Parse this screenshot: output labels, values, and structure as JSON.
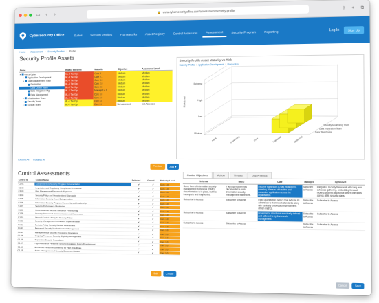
{
  "browser": {
    "url": "www.cybersecurityoffice.com/assessment/security-profile",
    "lock_icon": "lock-icon"
  },
  "app": {
    "brand": "Cybersecurity Office",
    "menu": [
      "Suites",
      "Security Profiles",
      "Frameworks",
      "Asset Registry",
      "Control Measures",
      "Assessment",
      "Security Program",
      "Reporting"
    ],
    "login": "Log In",
    "signup": "Sign Up",
    "brand_color": "#1a79c6"
  },
  "breadcrumb": [
    "Home",
    "Assessment",
    "Security Profiles",
    "Profile"
  ],
  "profile": {
    "title": "Security Profile Assets",
    "columns": [
      "Name",
      "Impact Baseline",
      "Maturity",
      "Objective",
      "Assurance Level"
    ],
    "rows": [
      {
        "name": "Office/Cyber",
        "impact": "ML-4 Tier/Opt",
        "maturity": "Core 3.1",
        "objective": "Medium",
        "assurance": "Medium",
        "c1": "red",
        "c2": "orange",
        "c3": "yellow",
        "c4": "yellow",
        "depth": 0,
        "sel": false
      },
      {
        "name": "Application Development",
        "impact": "ML-4 Tier/Opt",
        "maturity": "Core 2.1",
        "objective": "Medium",
        "assurance": "Medium",
        "c1": "red",
        "c2": "orange",
        "c3": "yellow",
        "c4": "yellow",
        "depth": 1,
        "sel": false
      },
      {
        "name": "Data Management Team",
        "impact": "ML-4 Tier/Opt",
        "maturity": "Core 3.0",
        "objective": "Medium",
        "assurance": "Medium",
        "c1": "red",
        "c2": "orange",
        "c3": "yellow",
        "c4": "yellow",
        "depth": 1,
        "sel": false
      },
      {
        "name": "Production",
        "impact": "ML-4 Tier/Opt",
        "maturity": "Core 2.0",
        "objective": "Medium",
        "assurance": "Medium",
        "c1": "red",
        "c2": "orange",
        "c3": "yellow",
        "c4": "yellow",
        "depth": 2,
        "sel": false
      },
      {
        "name": "Data Center Team",
        "impact": "ML-4 Tier/Opt",
        "maturity": "Core 2.5",
        "objective": "Medium",
        "assurance": "Medium",
        "c1": "red",
        "c2": "orange",
        "c3": "yellow",
        "c4": "yellow",
        "depth": 2,
        "sel": true
      },
      {
        "name": "Data Integration Mgr",
        "impact": "ML-4 Tier/Opt",
        "maturity": "Managed 4.0",
        "objective": "Medium",
        "assurance": "Medium",
        "c1": "red",
        "c2": "orange",
        "c3": "yellow",
        "c4": "yellow",
        "depth": 2,
        "sel": false
      },
      {
        "name": "Data Management",
        "impact": "ML-4 Tier/Opt",
        "maturity": "Core 3.0",
        "objective": "Medium",
        "assurance": "Medium",
        "c1": "red",
        "c2": "orange",
        "c3": "yellow",
        "c4": "yellow",
        "depth": 2,
        "sel": false
      },
      {
        "name": "Infrastructure Team",
        "impact": "ML-4 Tier/Opt",
        "maturity": "Core 2.0",
        "objective": "Medium",
        "assurance": "Medium",
        "c1": "red",
        "c2": "orange",
        "c3": "yellow",
        "c4": "yellow",
        "depth": 1,
        "sel": false
      },
      {
        "name": "Security Team",
        "impact": "ML-4 Tier/Opt",
        "maturity": "Core 3.0",
        "objective": "Medium",
        "assurance": "Medium",
        "c1": "yellow",
        "c2": "orange",
        "c3": "yellow",
        "c4": "yellow",
        "depth": 1,
        "sel": false
      },
      {
        "name": "Support Team",
        "impact": "ML-4 Tier/Opt",
        "maturity": "Core 2.0",
        "objective": "Not Assessed",
        "assurance": "Not Assessed",
        "c1": "yellow",
        "c2": "orange",
        "c3": "none",
        "c4": "none",
        "depth": 1,
        "sel": false
      }
    ],
    "links": [
      "Expand All",
      "Collapse All"
    ]
  },
  "chart_panel": {
    "title": "Security Profile Asset Maturity vs Risk",
    "crumb": [
      "Security Profile",
      "Application Development",
      "Production"
    ],
    "zlabel": "Risk Level",
    "y_ticks": [
      "Extreme",
      "High",
      "Low",
      "Minimal"
    ],
    "x_ticks": [
      "Initial",
      "Developing",
      "Core",
      "Managed",
      "Optimized"
    ],
    "depth_labels": [
      "Data Warehouse",
      "Data Integration Team",
      "Security Monitoring Team"
    ],
    "bar_color": "#f5f01e"
  },
  "chart_data": {
    "type": "bar",
    "title": "Security Profile Asset Maturity vs Risk",
    "categories": [
      "Initial",
      "Developing",
      "Core",
      "Managed",
      "Optimized"
    ],
    "series": [
      {
        "name": "Data Warehouse",
        "values": [
          0,
          0,
          0,
          2,
          0
        ]
      },
      {
        "name": "Data Integration Team",
        "values": [
          0,
          0,
          0,
          2,
          0
        ]
      },
      {
        "name": "Security Monitoring Team",
        "values": [
          0,
          0,
          0,
          2,
          0
        ]
      }
    ],
    "xlabel": "",
    "ylabel": "Risk Level"
  },
  "buttons": {
    "preview": "Preview",
    "add": "Add"
  },
  "ca": {
    "title": "Control Assessments",
    "columns": [
      "Control ID",
      "Control Name",
      "Selected",
      "Owned",
      "Maturity Level"
    ],
    "rows": [
      {
        "id": "C1.01",
        "name": "Comprehensive Security Program Documentation",
        "sel": "✔",
        "own": "✔",
        "ml": "Core 3.0",
        "active": true
      },
      {
        "id": "C1.02",
        "name": "Legislation and Regulatory Compliance Framework",
        "sel": "✔",
        "own": "✔",
        "ml": "Core 3.0",
        "active": false
      },
      {
        "id": "C1.03",
        "name": "Risk Management Framework Alignment",
        "sel": "✔",
        "own": "✔",
        "ml": "Core 3.0",
        "active": false
      },
      {
        "id": "C1.04",
        "name": "Security Policy and Organizational Standards",
        "sel": "✔",
        "own": "✔",
        "ml": "Core 3.0",
        "active": false
      },
      {
        "id": "C1.05",
        "name": "Information Security Asset Categorization",
        "sel": "✔",
        "own": "✔",
        "ml": "Core 3.0",
        "active": false
      },
      {
        "id": "C1.06",
        "name": "Information Security Program Ownership and Leadership",
        "sel": "✔",
        "own": "✔",
        "ml": "Core 3.0",
        "active": false
      },
      {
        "id": "C1.07",
        "name": "Security Performance Monitoring",
        "sel": "✔",
        "own": "✔",
        "ml": "Core 3.0",
        "active": false
      },
      {
        "id": "C1.08",
        "name": "Commitment to Security Resource Provisioning",
        "sel": "✔",
        "own": "✔",
        "ml": "Core 3.0",
        "active": false
      },
      {
        "id": "C1.09",
        "name": "Security Framework Communication and Awareness",
        "sel": "✔",
        "own": "✔",
        "ml": "Core 3.0",
        "active": false
      },
      {
        "id": "C1.10",
        "name": "Internal Control Library for Security Policy",
        "sel": "✔",
        "own": "✔",
        "ml": "Core 3.0",
        "active": false
      },
      {
        "id": "C1.11",
        "name": "Security Management Framework Implementation",
        "sel": "✔",
        "own": "✔",
        "ml": "Core 3.0",
        "active": false
      },
      {
        "id": "C1.12",
        "name": "Periodic Policy Security Review Assessment",
        "sel": "✔",
        "own": "✔",
        "ml": "Core 3.0",
        "active": false
      },
      {
        "id": "C1.13",
        "name": "Personnel Security Verification and Management",
        "sel": "✔",
        "own": "✔",
        "ml": "Core 3.0",
        "active": false
      },
      {
        "id": "C1.14",
        "name": "Management of Security Processing Operations",
        "sel": "✔",
        "own": "✔",
        "ml": "Core 3.0",
        "active": false
      },
      {
        "id": "C1.15",
        "name": "Ongoing Personnel Security Eligibility Management",
        "sel": "✔",
        "own": "✔",
        "ml": "Core 3.0",
        "active": false
      },
      {
        "id": "C1.16",
        "name": "Separation Security Procedures",
        "sel": "✔",
        "own": "✔",
        "ml": "Core 3.0",
        "active": false
      },
      {
        "id": "C1.17",
        "name": "High Assurance Personnel Security Clearance Policy Development",
        "sel": "✔",
        "own": "✔",
        "ml": "Core 3.0",
        "active": false
      },
      {
        "id": "C1.18",
        "name": "Enhanced Personnel Screening for High Risk Roles",
        "sel": "✔",
        "own": "✔",
        "ml": "Core 3.0",
        "active": false
      },
      {
        "id": "C1.19",
        "name": "Active Management of Security Clearance Holders",
        "sel": "✔",
        "own": "✔",
        "ml": "Core 3.0",
        "active": false
      }
    ],
    "edit": "Edit",
    "create": "Create"
  },
  "detail": {
    "tabs": [
      "Control Objectives",
      "Action",
      "Threats",
      "Gap Analysis"
    ],
    "columns": [
      "Informal",
      "Basic",
      "Core",
      "Managed",
      "Optimised"
    ],
    "rows": [
      [
        "Some form of information security management framework (ISMF) documentation is in place, but it is incomplete and fragmented.",
        "The organisation has documented a basic information security management framework.",
        "Security framework is well established, covering all areas with active and consistent application across the organisation.",
        "Subscribe to Access",
        "Integrated security framework with long-term evidence gathering, embedding forward looking security-assurance-driven principles across all its security plans."
      ],
      [
        "Subscribe to Access",
        "Subscribe to Access",
        "Fixed quantitative metrics that indicate its adherence to framework standards along with centrally embedded improvement-driven metrics.",
        "Subscribe to Access",
        "Subscribe to Access"
      ],
      [
        "Subscribe to Access",
        "Subscribe to Access",
        "Governance structures are clearly defined and adhered to by framework management.",
        "Subscribe to Access",
        "Subscribe to Access"
      ],
      [
        "Subscribe to Access",
        "Subscribe to Access",
        "",
        "Subscribe to Access",
        "Subscribe to Access"
      ]
    ]
  },
  "footer": {
    "cancel": "Cancel",
    "save": "Save"
  }
}
